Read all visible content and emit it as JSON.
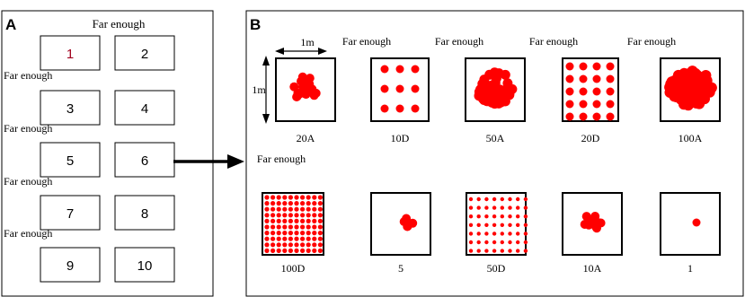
{
  "colors": {
    "dot": "#ff0000",
    "line": "#000000",
    "background": "#ffffff"
  },
  "panel_a": {
    "letter": "A",
    "caption": "Far enough",
    "rows": [
      {
        "left": "1",
        "right": "2",
        "left_label_color": "#a0001e"
      },
      {
        "left": "3",
        "right": "4",
        "left_label_color": "#000000"
      },
      {
        "left": "5",
        "right": "6",
        "left_label_color": "#000000"
      },
      {
        "left": "7",
        "right": "8",
        "left_label_color": "#000000"
      },
      {
        "left": "9",
        "right": "10",
        "left_label_color": "#000000"
      }
    ]
  },
  "panel_b": {
    "letter": "B",
    "caption": "Far enough",
    "width_label": "1m",
    "height_label": "1m",
    "row1": [
      {
        "label": "20A",
        "pattern": "aggregated",
        "count": 20
      },
      {
        "label": "10D",
        "pattern": "dispersed",
        "count": 10
      },
      {
        "label": "50A",
        "pattern": "aggregated",
        "count": 50
      },
      {
        "label": "20D",
        "pattern": "dispersed",
        "count": 20
      },
      {
        "label": "100A",
        "pattern": "aggregated",
        "count": 100
      }
    ],
    "row2": [
      {
        "label": "100D",
        "pattern": "dispersed",
        "count": 100
      },
      {
        "label": "5",
        "pattern": "aggregated",
        "count": 5
      },
      {
        "label": "50D",
        "pattern": "dispersed",
        "count": 50
      },
      {
        "label": "10A",
        "pattern": "aggregated",
        "count": 10
      },
      {
        "label": "1",
        "pattern": "single",
        "count": 1
      }
    ]
  }
}
